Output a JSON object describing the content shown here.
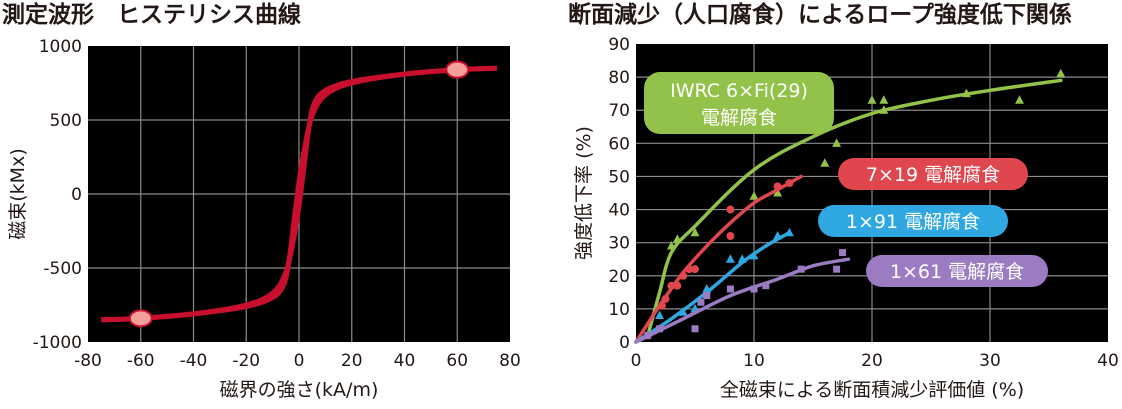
{
  "titles": {
    "left": "測定波形　ヒステリシス曲線",
    "right": "断面減少（人口腐食）によるロープ強度低下関係"
  },
  "chart_data": [
    {
      "type": "line",
      "xlabel": "磁界の強さ(kA/m)",
      "ylabel": "磁束(kMx)",
      "xlim": [
        -80,
        80
      ],
      "ylim": [
        -1000,
        1000
      ],
      "xticks": [
        "-80",
        "-60",
        "-40",
        "-20",
        "0",
        "20",
        "40",
        "60",
        "80"
      ],
      "yticks": [
        "-1000",
        "-500",
        "0",
        "500",
        "1000"
      ],
      "grid": true,
      "colors": {
        "background": "#000000",
        "grid": "#8a8a8a",
        "curve": "#c8102e",
        "marker": "#f4a09a"
      },
      "series": [
        {
          "x": [
            -75,
            -60,
            -40,
            -20,
            -10,
            -5,
            -2,
            0,
            2,
            4,
            6,
            10,
            20,
            40,
            60,
            75
          ],
          "y": [
            -850,
            -840,
            -810,
            -750,
            -670,
            -530,
            -300,
            -80,
            200,
            480,
            620,
            700,
            760,
            810,
            840,
            850
          ]
        },
        {
          "x": [
            -75,
            -60,
            -40,
            -20,
            -10,
            -6,
            -4,
            -2,
            0,
            2,
            5,
            10,
            20,
            40,
            60,
            75
          ],
          "y": [
            -850,
            -840,
            -810,
            -760,
            -700,
            -620,
            -480,
            -200,
            80,
            300,
            530,
            670,
            750,
            810,
            840,
            850
          ]
        }
      ],
      "markers": [
        {
          "x": -60,
          "y": -840
        },
        {
          "x": 60,
          "y": 840
        }
      ]
    },
    {
      "type": "scatter",
      "xlabel": "全磁束による断面積減少評価値 (%)",
      "ylabel": "強度低下率 (%)",
      "xlim": [
        0,
        40
      ],
      "ylim": [
        0,
        90
      ],
      "xticks": [
        "0",
        "10",
        "20",
        "30",
        "40"
      ],
      "yticks": [
        "0",
        "10",
        "20",
        "30",
        "40",
        "50",
        "60",
        "70",
        "80",
        "90"
      ],
      "grid": true,
      "colors": {
        "background": "#000000",
        "grid": "#8a8a8a"
      },
      "series": [
        {
          "name": "IWRC 6×Fi(29) 電解腐食",
          "color": "#93c24b",
          "points": [
            [
              3,
              29
            ],
            [
              3.5,
              31
            ],
            [
              5,
              33
            ],
            [
              10,
              44
            ],
            [
              12,
              45
            ],
            [
              16,
              54
            ],
            [
              17,
              60
            ],
            [
              20,
              73
            ],
            [
              21,
              70
            ],
            [
              21,
              73
            ],
            [
              28,
              75
            ],
            [
              32.5,
              73
            ],
            [
              36,
              81
            ]
          ],
          "fit": [
            [
              1,
              2
            ],
            [
              2,
              15
            ],
            [
              3,
              27
            ],
            [
              5,
              35
            ],
            [
              10,
              52
            ],
            [
              15,
              62
            ],
            [
              20,
              69
            ],
            [
              25,
              73
            ],
            [
              30,
              76
            ],
            [
              36,
              79
            ]
          ]
        },
        {
          "name": "7×19 電解腐食",
          "color": "#e0464e",
          "points": [
            [
              1,
              2
            ],
            [
              2.2,
              11
            ],
            [
              2.5,
              13
            ],
            [
              3,
              17
            ],
            [
              3.5,
              17
            ],
            [
              4,
              20
            ],
            [
              4.5,
              22
            ],
            [
              5,
              22
            ],
            [
              8,
              32
            ],
            [
              8,
              40
            ],
            [
              12,
              47
            ],
            [
              13,
              48
            ]
          ],
          "fit": [
            [
              0,
              0
            ],
            [
              2,
              11
            ],
            [
              4,
              21
            ],
            [
              6,
              29
            ],
            [
              8,
              36
            ],
            [
              10,
              42
            ],
            [
              12,
              46
            ],
            [
              14,
              50
            ]
          ]
        },
        {
          "name": "1×91 電解腐食",
          "color": "#2fa8e2",
          "points": [
            [
              2,
              8
            ],
            [
              4,
              9
            ],
            [
              5,
              10
            ],
            [
              6,
              16
            ],
            [
              8,
              25
            ],
            [
              9,
              25
            ],
            [
              10,
              26
            ],
            [
              12,
              32
            ],
            [
              13,
              33
            ]
          ],
          "fit": [
            [
              0,
              0
            ],
            [
              3,
              7
            ],
            [
              6,
              15
            ],
            [
              9,
              24
            ],
            [
              11,
              29
            ],
            [
              13,
              33
            ]
          ]
        },
        {
          "name": "1×61 電解腐食",
          "color": "#9b7cc2",
          "points": [
            [
              1,
              2
            ],
            [
              2,
              4
            ],
            [
              5,
              4
            ],
            [
              5.5,
              12
            ],
            [
              6,
              14
            ],
            [
              8,
              16
            ],
            [
              10,
              16
            ],
            [
              11,
              17
            ],
            [
              14,
              22
            ],
            [
              17,
              22
            ],
            [
              17.5,
              27
            ]
          ],
          "fit": [
            [
              0,
              0
            ],
            [
              4,
              7
            ],
            [
              8,
              14
            ],
            [
              12,
              19
            ],
            [
              15,
              23
            ],
            [
              18,
              25
            ]
          ]
        }
      ]
    }
  ],
  "labels": [
    {
      "line1": "IWRC 6×Fi(29)",
      "line2": "電解腐食",
      "color": "#93c24b"
    },
    {
      "line1": "7×19 電解腐食",
      "color": "#e0464e"
    },
    {
      "line1": "1×91 電解腐食",
      "color": "#2fa8e2"
    },
    {
      "line1": "1×61 電解腐食",
      "color": "#9b7cc2"
    }
  ]
}
